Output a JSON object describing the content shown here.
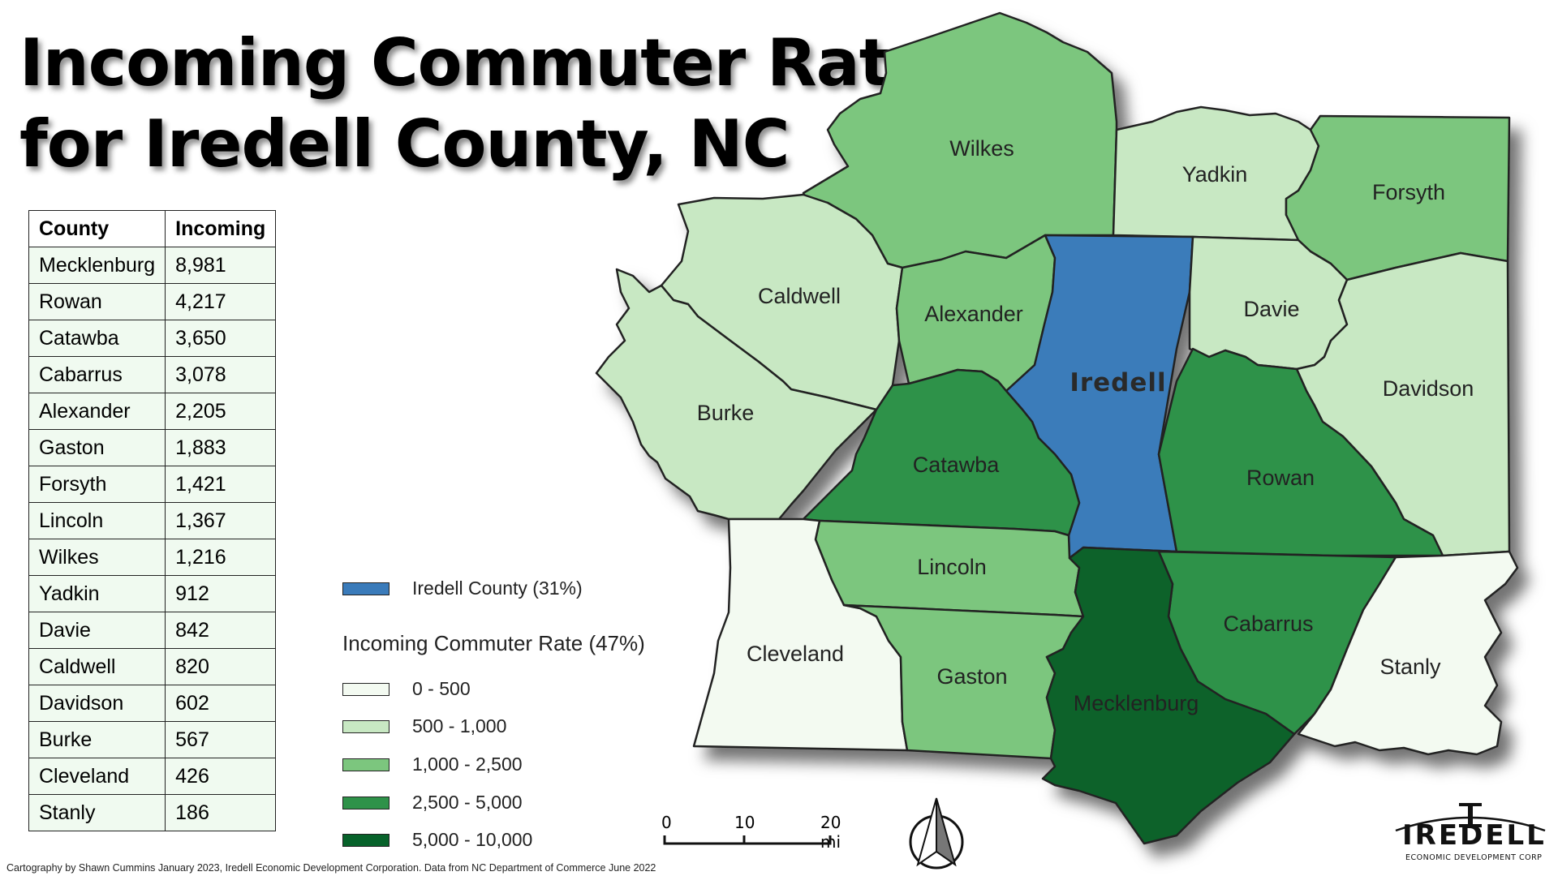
{
  "title": {
    "line1": "Incoming Commuter Rate",
    "line2": "for Iredell County, NC"
  },
  "table": {
    "headers": [
      "County",
      "Incoming"
    ],
    "rows": [
      {
        "county": "Mecklenburg",
        "incoming": "8,981"
      },
      {
        "county": "Rowan",
        "incoming": "4,217"
      },
      {
        "county": "Catawba",
        "incoming": "3,650"
      },
      {
        "county": "Cabarrus",
        "incoming": "3,078"
      },
      {
        "county": "Alexander",
        "incoming": "2,205"
      },
      {
        "county": "Gaston",
        "incoming": "1,883"
      },
      {
        "county": "Forsyth",
        "incoming": "1,421"
      },
      {
        "county": "Lincoln",
        "incoming": "1,367"
      },
      {
        "county": "Wilkes",
        "incoming": "1,216"
      },
      {
        "county": "Yadkin",
        "incoming": "912"
      },
      {
        "county": "Davie",
        "incoming": "842"
      },
      {
        "county": "Caldwell",
        "incoming": "820"
      },
      {
        "county": "Davidson",
        "incoming": "602"
      },
      {
        "county": "Burke",
        "incoming": "567"
      },
      {
        "county": "Cleveland",
        "incoming": "426"
      },
      {
        "county": "Stanly",
        "incoming": "186"
      }
    ]
  },
  "legend": {
    "iredell_label": "Iredell County (31%)",
    "iredell_color": "#3a7bba",
    "heading": "Incoming Commuter Rate (47%)",
    "classes": [
      {
        "label": "0 - 500",
        "color": "#f3faf1"
      },
      {
        "label": "500 - 1,000",
        "color": "#c8e8c3"
      },
      {
        "label": "1,000 - 2,500",
        "color": "#7cc67e"
      },
      {
        "label": "2,500 - 5,000",
        "color": "#2e9249"
      },
      {
        "label": "5,000 - 10,000",
        "color": "#07622a"
      }
    ]
  },
  "map_labels": {
    "wilkes": "Wilkes",
    "yadkin": "Yadkin",
    "forsyth": "Forsyth",
    "caldwell": "Caldwell",
    "alexander": "Alexander",
    "iredell": "Iredell",
    "davie": "Davie",
    "davidson": "Davidson",
    "burke": "Burke",
    "catawba": "Catawba",
    "rowan": "Rowan",
    "lincoln": "Lincoln",
    "cabarrus": "Cabarrus",
    "cleveland": "Cleveland",
    "gaston": "Gaston",
    "stanly": "Stanly",
    "mecklenburg": "Mecklenburg"
  },
  "scalebar": {
    "t0": "0",
    "t1": "10",
    "t2": "20 mi"
  },
  "credit": "Cartography by Shawn Cummins January 2023, Iredell Economic Development Corporation. Data from NC Department of Commerce June 2022",
  "logo": {
    "name": "IREDELL",
    "subtitle": "ECONOMIC DEVELOPMENT CORP"
  },
  "icons": {
    "north_arrow": "north-arrow-icon"
  }
}
